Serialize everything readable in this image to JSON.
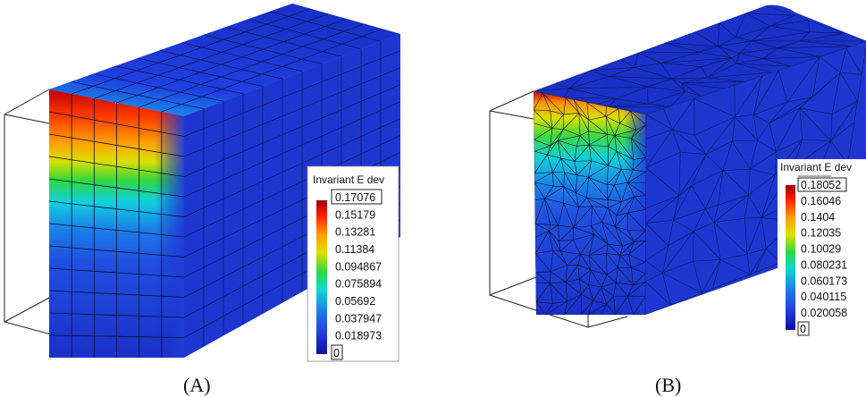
{
  "panels": [
    {
      "caption": "(A)",
      "mesh": "hexahedral",
      "legend": {
        "title": "Invariant E dev",
        "max_label": "0.17076",
        "ticks": [
          "0.15179",
          "0.13281",
          "0.11384",
          "0.094867",
          "0.075894",
          "0.05692",
          "0.037947",
          "0.018973"
        ],
        "min_label": "0"
      }
    },
    {
      "caption": "(B)",
      "mesh": "tetrahedral",
      "legend": {
        "title": "Invariant E dev",
        "max_label": "0.18052",
        "ticks": [
          "0.16046",
          "0.1404",
          "0.12035",
          "0.10029",
          "0.080231",
          "0.060173",
          "0.040115",
          "0.020058"
        ],
        "min_label": "0"
      }
    }
  ],
  "colorscale": [
    "#b00000",
    "#ff3000",
    "#ff9a00",
    "#e8e800",
    "#30d840",
    "#10d8d0",
    "#1a7fe8",
    "#1f3fe0",
    "#1010a0"
  ]
}
